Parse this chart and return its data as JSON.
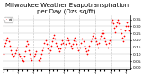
{
  "title": "Milwaukee Weather Evapotranspiration\nper Day (Ozs sq/ft)",
  "title_fontsize": 5.0,
  "background_color": "#ffffff",
  "plot_bg_color": "#ffffff",
  "grid_color": "#c0c0c0",
  "dot_color": "#ff0000",
  "dot_size": 1.5,
  "y_ticks": [
    0.0,
    0.05,
    0.1,
    0.15,
    0.2,
    0.25,
    0.3,
    0.35
  ],
  "ylim": [
    -0.01,
    0.38
  ],
  "legend_label": "et",
  "legend_color": "#ff0000",
  "x_data": [
    1,
    2,
    3,
    4,
    5,
    6,
    7,
    8,
    9,
    10,
    11,
    12,
    13,
    14,
    15,
    17,
    18,
    19,
    20,
    21,
    22,
    23,
    24,
    25,
    26,
    27,
    28,
    29,
    30,
    32,
    33,
    34,
    37,
    38,
    39,
    40,
    41,
    42,
    43,
    44,
    45,
    46,
    47,
    49,
    50,
    51,
    52,
    53,
    54,
    55,
    56,
    57,
    58,
    59,
    60,
    61,
    62,
    64,
    65,
    66,
    67,
    68,
    69,
    70,
    71,
    72,
    73,
    74,
    75,
    76,
    77,
    78,
    80,
    81,
    82,
    83,
    84,
    85,
    86,
    87,
    88,
    89,
    91,
    92,
    93,
    94,
    95,
    96,
    97,
    98,
    99,
    100,
    101,
    102,
    103,
    104,
    105,
    106,
    107,
    108,
    109,
    110,
    112,
    113,
    114,
    115,
    116,
    117,
    118,
    119,
    120,
    121,
    122,
    123,
    124,
    125,
    126,
    127,
    128,
    129,
    130
  ],
  "y_data": [
    0.1,
    0.16,
    0.18,
    0.2,
    0.22,
    0.19,
    0.16,
    0.13,
    0.1,
    0.09,
    0.08,
    0.09,
    0.11,
    0.13,
    0.15,
    0.1,
    0.08,
    0.07,
    0.06,
    0.05,
    0.08,
    0.12,
    0.16,
    0.19,
    0.17,
    0.13,
    0.1,
    0.07,
    0.06,
    0.08,
    0.1,
    0.12,
    0.06,
    0.05,
    0.07,
    0.1,
    0.13,
    0.15,
    0.18,
    0.2,
    0.17,
    0.14,
    0.11,
    0.13,
    0.16,
    0.19,
    0.22,
    0.24,
    0.21,
    0.18,
    0.16,
    0.14,
    0.12,
    0.14,
    0.17,
    0.2,
    0.18,
    0.15,
    0.17,
    0.2,
    0.22,
    0.2,
    0.18,
    0.16,
    0.14,
    0.17,
    0.2,
    0.22,
    0.19,
    0.17,
    0.15,
    0.13,
    0.15,
    0.18,
    0.21,
    0.19,
    0.16,
    0.14,
    0.12,
    0.1,
    0.13,
    0.16,
    0.19,
    0.21,
    0.23,
    0.25,
    0.22,
    0.19,
    0.17,
    0.15,
    0.18,
    0.21,
    0.23,
    0.25,
    0.27,
    0.25,
    0.22,
    0.19,
    0.17,
    0.15,
    0.18,
    0.2,
    0.33,
    0.35,
    0.32,
    0.29,
    0.26,
    0.3,
    0.33,
    0.35,
    0.32,
    0.28,
    0.25,
    0.22,
    0.19,
    0.23,
    0.27,
    0.3,
    0.33,
    0.3,
    0.27
  ],
  "vline_positions": [
    16,
    31,
    48,
    63,
    79,
    95,
    111
  ],
  "xlim": [
    0,
    132
  ],
  "x_tick_positions": [
    1,
    5,
    10,
    16,
    20,
    25,
    31,
    35,
    40,
    48,
    52,
    56,
    63,
    67,
    72,
    79,
    83,
    88,
    95,
    100,
    105,
    111,
    115,
    120,
    127
  ],
  "x_tick_labels": [
    "1",
    "",
    "",
    "1",
    "",
    "",
    "1",
    "",
    "",
    "1",
    "",
    "",
    "1",
    "",
    "",
    "1",
    "",
    "",
    "1",
    "",
    "",
    "1",
    "",
    "",
    "1"
  ]
}
